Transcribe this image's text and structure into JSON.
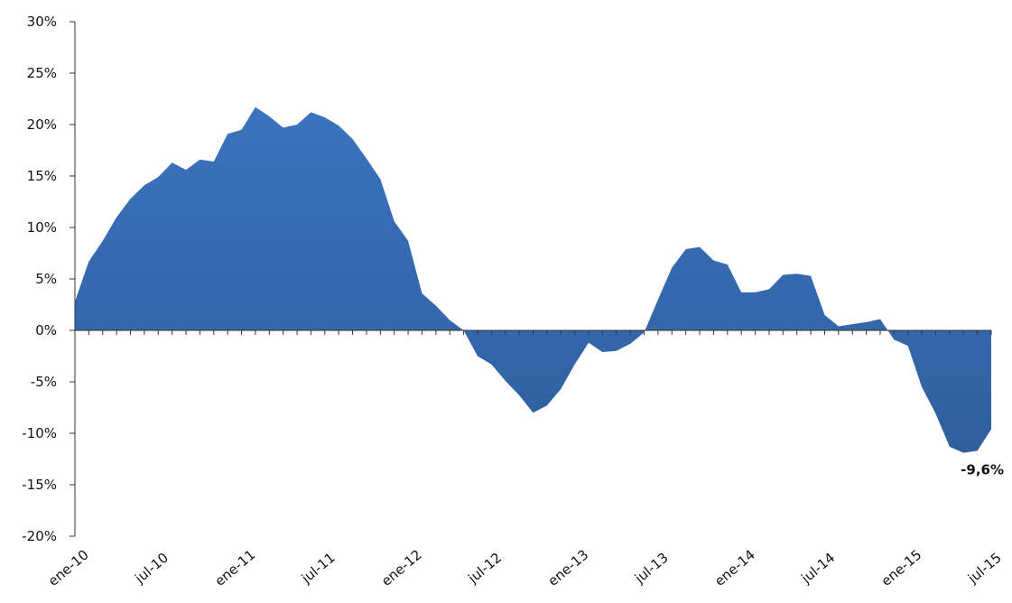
{
  "chart_data": {
    "type": "area",
    "title": "",
    "xlabel": "",
    "ylabel": "",
    "ylim": [
      -20,
      30
    ],
    "yticks": [
      30,
      25,
      20,
      15,
      10,
      5,
      0,
      -5,
      -10,
      -15,
      -20
    ],
    "ytick_labels": [
      "30%",
      "25%",
      "20%",
      "15%",
      "10%",
      "5%",
      "0%",
      "-5%",
      "-10%",
      "-15%",
      "-20%"
    ],
    "xtick_labels": [
      "ene-10",
      "jul-10",
      "ene-11",
      "jul-11",
      "ene-12",
      "jul-12",
      "ene-13",
      "jul-13",
      "ene-14",
      "jul-14",
      "ene-15",
      "jul-15"
    ],
    "grid": false,
    "legend": "none",
    "series_color": "#3b73bd",
    "series_color_dark": "#2f5f9f",
    "annotation": {
      "text": "-9,6%",
      "month": "jul-15"
    },
    "x": [
      "ene-10",
      "feb-10",
      "mar-10",
      "abr-10",
      "may-10",
      "jun-10",
      "jul-10",
      "ago-10",
      "sep-10",
      "oct-10",
      "nov-10",
      "dic-10",
      "ene-11",
      "feb-11",
      "mar-11",
      "abr-11",
      "may-11",
      "jun-11",
      "jul-11",
      "ago-11",
      "sep-11",
      "oct-11",
      "nov-11",
      "dic-11",
      "ene-12",
      "feb-12",
      "mar-12",
      "abr-12",
      "may-12",
      "jun-12",
      "jul-12",
      "ago-12",
      "sep-12",
      "oct-12",
      "nov-12",
      "dic-12",
      "ene-13",
      "feb-13",
      "mar-13",
      "abr-13",
      "may-13",
      "jun-13",
      "jul-13",
      "ago-13",
      "sep-13",
      "oct-13",
      "nov-13",
      "dic-13",
      "ene-14",
      "feb-14",
      "mar-14",
      "abr-14",
      "may-14",
      "jun-14",
      "jul-14",
      "ago-14",
      "sep-14",
      "oct-14",
      "nov-14",
      "dic-14",
      "ene-15",
      "feb-15",
      "mar-15",
      "abr-15",
      "may-15",
      "jun-15",
      "jul-15"
    ],
    "values": [
      2.8,
      6.7,
      8.7,
      11.0,
      12.8,
      14.1,
      14.9,
      16.3,
      15.6,
      16.6,
      16.4,
      19.1,
      19.5,
      21.7,
      20.8,
      19.7,
      20.0,
      21.2,
      20.7,
      19.9,
      18.6,
      16.7,
      14.7,
      10.6,
      8.7,
      3.6,
      2.4,
      1.0,
      0.0,
      -2.5,
      -3.3,
      -4.9,
      -6.3,
      -8.0,
      -7.3,
      -5.7,
      -3.3,
      -1.2,
      -2.1,
      -2.0,
      -1.3,
      -0.2,
      3.0,
      6.1,
      7.9,
      8.1,
      6.8,
      6.4,
      3.7,
      3.7,
      4.0,
      5.4,
      5.5,
      5.3,
      1.5,
      0.4,
      0.6,
      0.8,
      1.1,
      -0.9,
      -1.5,
      -5.5,
      -8.1,
      -11.3,
      -11.9,
      -11.7,
      -9.6
    ]
  }
}
